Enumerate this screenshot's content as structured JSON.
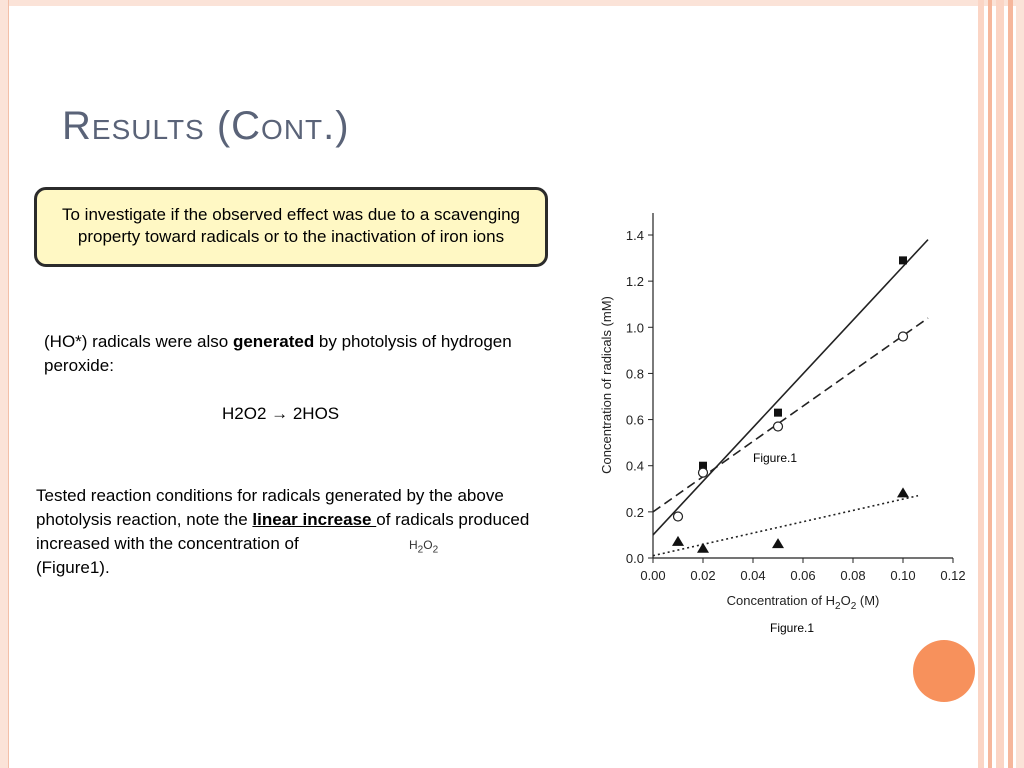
{
  "slide": {
    "title": "Results (Cont.)",
    "callout": "To investigate if the observed effect was due to a scavenging property toward radicals or to the inactivation of iron ions",
    "para1": {
      "before": "(HO*) radicals were also ",
      "bold": "generated",
      "after": " by photolysis of hydrogen peroxide:"
    },
    "equation": "H2O2 → 2HOS",
    "para2": {
      "before": "Tested reaction conditions for radicals generated by the above photolysis reaction, note the ",
      "underlined": "linear increase ",
      "after": "of radicals produced increased with the concentration of",
      "line_end": "(Figure1)."
    },
    "overlay_formula": "H2O2",
    "figure_inner_caption": "Figure.1",
    "figure_caption": "Figure.1"
  },
  "colors": {
    "title": "#5a6378",
    "callout_bg": "#fff8c4",
    "accent_orange": "#f7915c",
    "frame_peach": "#fbe3d8"
  },
  "chart_data": {
    "type": "scatter",
    "xlabel": "Concentration of H2O2 (M)",
    "ylabel": "Concentration of radicals (mM)",
    "xlim": [
      0.0,
      0.12
    ],
    "ylim": [
      0.0,
      1.4
    ],
    "xticks": [
      "0.00",
      "0.02",
      "0.04",
      "0.06",
      "0.08",
      "0.10",
      "0.12"
    ],
    "yticks": [
      "0.0",
      "0.2",
      "0.4",
      "0.6",
      "0.8",
      "1.0",
      "1.2",
      "1.4"
    ],
    "series": [
      {
        "marker": "filled-square",
        "line": "solid",
        "points": [
          [
            0.02,
            0.4
          ],
          [
            0.05,
            0.63
          ],
          [
            0.1,
            1.29
          ]
        ],
        "fit": [
          [
            0.0,
            0.1
          ],
          [
            0.11,
            1.38
          ]
        ]
      },
      {
        "marker": "open-circle",
        "line": "dashed",
        "points": [
          [
            0.01,
            0.18
          ],
          [
            0.02,
            0.37
          ],
          [
            0.05,
            0.57
          ],
          [
            0.1,
            0.96
          ]
        ],
        "fit": [
          [
            0.0,
            0.2
          ],
          [
            0.11,
            1.04
          ]
        ]
      },
      {
        "marker": "filled-triangle",
        "line": "dotted",
        "points": [
          [
            0.01,
            0.07
          ],
          [
            0.02,
            0.04
          ],
          [
            0.05,
            0.06
          ],
          [
            0.1,
            0.28
          ]
        ],
        "fit": [
          [
            0.0,
            0.01
          ],
          [
            0.106,
            0.27
          ]
        ]
      }
    ]
  }
}
